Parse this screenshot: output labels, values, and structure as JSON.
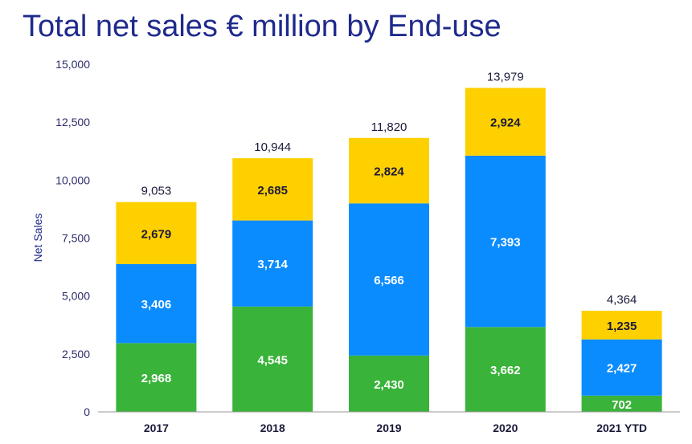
{
  "chart_data": {
    "type": "bar",
    "stacked": true,
    "title": "Total net sales € million by End-use",
    "xlabel": "",
    "ylabel": "Net Sales",
    "ylim": [
      0,
      15000
    ],
    "yticks": [
      "0",
      "2,500",
      "5,000",
      "7,500",
      "10,000",
      "12,500",
      "15,000"
    ],
    "ytick_values": [
      0,
      2500,
      5000,
      7500,
      10000,
      12500,
      15000
    ],
    "categories": [
      "2017",
      "2018",
      "2019",
      "2020",
      "2021 YTD"
    ],
    "series": [
      {
        "name": "green",
        "color": "#39b339",
        "label_color": "#ffffff",
        "values": [
          2968,
          4545,
          2430,
          3662,
          702
        ],
        "labels": [
          "2,968",
          "4,545",
          "2,430",
          "3,662",
          "702"
        ]
      },
      {
        "name": "blue",
        "color": "#0a8cff",
        "label_color": "#ffffff",
        "values": [
          3406,
          3714,
          6566,
          7393,
          2427
        ],
        "labels": [
          "3,406",
          "3,714",
          "6,566",
          "7,393",
          "2,427"
        ]
      },
      {
        "name": "yellow",
        "color": "#ffd000",
        "label_color": "#1a1a3a",
        "values": [
          2679,
          2685,
          2824,
          2924,
          1235
        ],
        "labels": [
          "2,679",
          "2,685",
          "2,824",
          "2,924",
          "1,235"
        ]
      }
    ],
    "totals": [
      9053,
      10944,
      11820,
      13979,
      4364
    ],
    "total_labels": [
      "9,053",
      "10,944",
      "11,820",
      "13,979",
      "4,364"
    ],
    "legend": "none",
    "grid": false
  }
}
